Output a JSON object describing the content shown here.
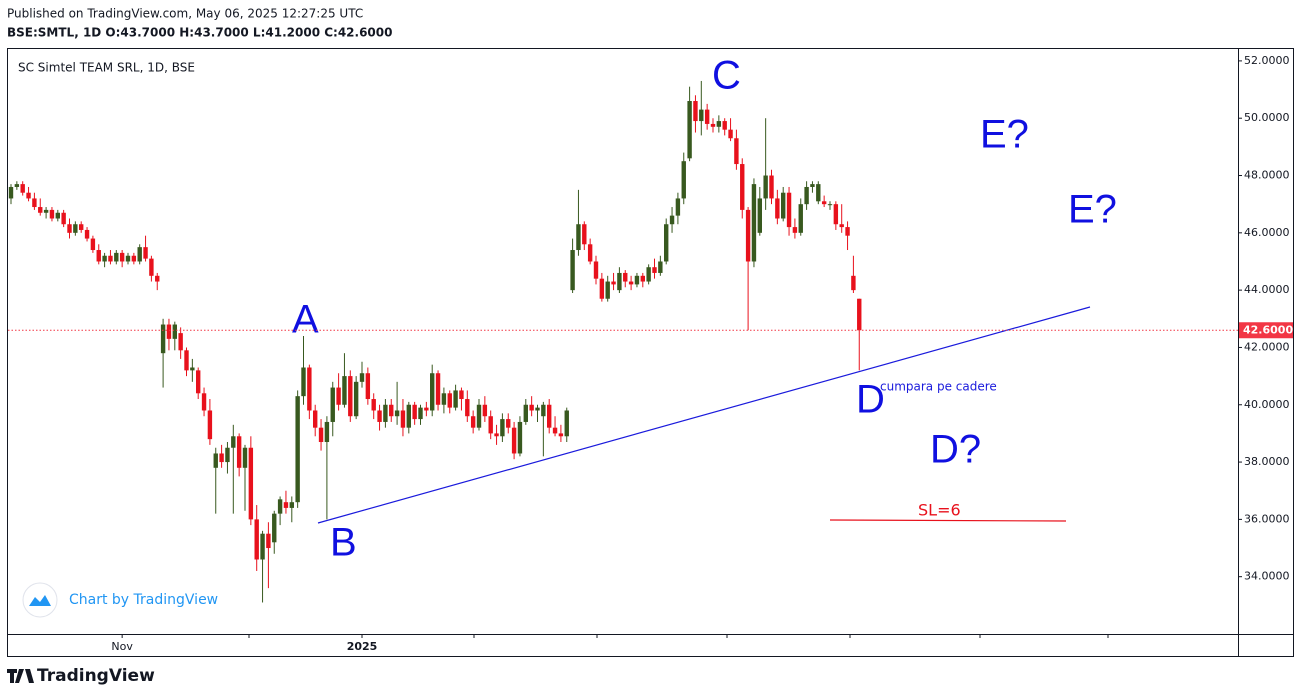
{
  "header": {
    "published": "Published on TradingView.com, May 06, 2025 12:27:25 UTC",
    "legend": "BSE:SMTL, 1D  O:43.7000 H:43.7000 L:41.2000 C:42.6000"
  },
  "footer": {
    "watermark": "Chart by TradingView",
    "logo": "TradingView"
  },
  "chart_data": {
    "type": "candlestick",
    "title": "SC Simtel TEAM SRL, 1D, BSE",
    "up_color": "#38591f",
    "down_color": "#e8111c",
    "categories": [
      null,
      null,
      null,
      null,
      null,
      null,
      null,
      null,
      null,
      null,
      null,
      null,
      null,
      null,
      null,
      null,
      null,
      null,
      null,
      "Nov",
      null,
      null,
      null,
      null,
      null,
      null,
      null,
      null,
      null,
      null,
      null,
      null,
      null,
      null,
      null,
      null,
      null,
      null,
      null,
      null,
      null,
      null,
      null,
      null,
      null,
      null,
      null,
      null,
      null,
      null,
      null,
      null,
      null,
      null,
      null,
      null,
      null,
      null,
      null,
      null,
      "2025",
      null,
      null,
      null,
      null,
      null,
      null,
      null,
      null,
      null,
      null,
      null,
      null,
      null,
      null,
      null,
      null,
      null,
      null,
      null,
      null,
      null,
      null,
      null,
      null,
      null,
      null,
      null,
      null,
      null,
      null,
      null,
      null,
      null,
      null,
      null,
      null,
      null,
      null,
      null,
      null,
      null,
      null,
      null,
      null,
      null,
      null,
      null,
      null,
      null,
      null,
      null,
      null,
      null,
      null,
      null,
      null,
      null,
      null,
      null,
      null,
      null,
      null,
      null,
      null,
      null,
      null,
      null,
      null,
      null,
      null,
      null,
      null,
      null,
      null,
      null,
      null,
      null,
      null,
      null,
      null,
      null,
      null,
      null,
      null,
      null
    ],
    "candles": [
      [
        47.2,
        47.7,
        47.0,
        47.6
      ],
      [
        47.6,
        47.8,
        47.5,
        47.7
      ],
      [
        47.7,
        47.8,
        47.3,
        47.4
      ],
      [
        47.4,
        47.6,
        47.1,
        47.2
      ],
      [
        47.2,
        47.4,
        46.8,
        46.9
      ],
      [
        46.9,
        47.2,
        46.6,
        46.7
      ],
      [
        46.7,
        46.9,
        46.5,
        46.8
      ],
      [
        46.8,
        46.9,
        46.4,
        46.5
      ],
      [
        46.5,
        46.8,
        46.4,
        46.7
      ],
      [
        46.7,
        46.8,
        46.2,
        46.3
      ],
      [
        46.3,
        46.5,
        45.8,
        46.0
      ],
      [
        46.0,
        46.4,
        45.9,
        46.3
      ],
      [
        46.3,
        46.4,
        46.0,
        46.1
      ],
      [
        46.1,
        46.2,
        45.7,
        45.8
      ],
      [
        45.8,
        45.9,
        45.3,
        45.4
      ],
      [
        45.4,
        45.6,
        44.9,
        45.0
      ],
      [
        45.0,
        45.3,
        44.8,
        45.2
      ],
      [
        45.2,
        45.4,
        44.9,
        45.0
      ],
      [
        45.0,
        45.4,
        44.9,
        45.3
      ],
      [
        45.3,
        45.4,
        44.8,
        45.0
      ],
      [
        45.0,
        45.3,
        44.9,
        45.2
      ],
      [
        45.2,
        45.3,
        44.9,
        45.0
      ],
      [
        45.0,
        45.6,
        44.9,
        45.5
      ],
      [
        45.5,
        45.9,
        45.0,
        45.1
      ],
      [
        45.1,
        45.2,
        44.3,
        44.5
      ],
      [
        44.5,
        44.6,
        44.0,
        44.3
      ],
      [
        41.8,
        43.0,
        40.6,
        42.8
      ],
      [
        42.8,
        43.0,
        41.9,
        42.3
      ],
      [
        42.3,
        42.9,
        41.9,
        42.8
      ],
      [
        42.5,
        42.7,
        41.6,
        41.9
      ],
      [
        41.9,
        42.0,
        41.0,
        41.2
      ],
      [
        41.2,
        41.6,
        40.8,
        41.3
      ],
      [
        41.2,
        41.3,
        40.2,
        40.4
      ],
      [
        40.4,
        40.6,
        39.6,
        39.8
      ],
      [
        39.8,
        40.2,
        38.6,
        38.8
      ],
      [
        37.8,
        38.5,
        36.2,
        38.3
      ],
      [
        38.3,
        38.6,
        37.8,
        38.0
      ],
      [
        38.0,
        38.7,
        37.6,
        38.5
      ],
      [
        38.5,
        39.3,
        36.2,
        38.9
      ],
      [
        38.9,
        39.0,
        37.5,
        37.8
      ],
      [
        37.8,
        38.6,
        36.3,
        38.5
      ],
      [
        38.5,
        38.9,
        35.8,
        36.0
      ],
      [
        36.0,
        36.5,
        34.2,
        34.6
      ],
      [
        34.6,
        35.6,
        33.1,
        35.5
      ],
      [
        35.5,
        35.9,
        33.6,
        35.0
      ],
      [
        35.2,
        36.3,
        34.8,
        36.2
      ],
      [
        36.2,
        36.8,
        35.8,
        36.7
      ],
      [
        36.6,
        37.0,
        36.2,
        36.4
      ],
      [
        36.4,
        36.8,
        35.9,
        36.6
      ],
      [
        36.6,
        40.5,
        36.4,
        40.3
      ],
      [
        40.3,
        42.4,
        40.0,
        41.3
      ],
      [
        41.3,
        41.4,
        39.5,
        39.8
      ],
      [
        39.8,
        40.0,
        38.9,
        39.2
      ],
      [
        39.2,
        39.5,
        38.4,
        38.7
      ],
      [
        38.7,
        39.6,
        36.0,
        39.4
      ],
      [
        39.4,
        40.8,
        38.9,
        40.6
      ],
      [
        40.6,
        41.1,
        39.8,
        40.0
      ],
      [
        40.0,
        41.8,
        39.9,
        41.0
      ],
      [
        41.0,
        41.2,
        39.4,
        39.6
      ],
      [
        39.6,
        41.0,
        39.5,
        40.8
      ],
      [
        40.8,
        41.5,
        40.6,
        41.1
      ],
      [
        41.1,
        41.3,
        40.0,
        40.2
      ],
      [
        40.2,
        40.4,
        39.5,
        39.8
      ],
      [
        39.8,
        40.0,
        39.1,
        39.4
      ],
      [
        39.4,
        40.2,
        39.2,
        40.0
      ],
      [
        40.0,
        40.2,
        39.4,
        39.6
      ],
      [
        39.6,
        40.8,
        39.3,
        39.8
      ],
      [
        39.8,
        40.2,
        38.9,
        39.2
      ],
      [
        39.2,
        40.1,
        39.0,
        40.0
      ],
      [
        40.0,
        40.1,
        39.3,
        39.5
      ],
      [
        39.5,
        40.0,
        39.3,
        39.9
      ],
      [
        39.9,
        40.1,
        39.6,
        39.8
      ],
      [
        39.8,
        41.4,
        39.6,
        41.1
      ],
      [
        41.1,
        41.2,
        39.8,
        40.0
      ],
      [
        40.0,
        40.6,
        39.7,
        40.4
      ],
      [
        40.4,
        40.5,
        39.7,
        39.9
      ],
      [
        39.9,
        40.7,
        39.8,
        40.5
      ],
      [
        40.5,
        40.6,
        39.8,
        40.2
      ],
      [
        40.2,
        40.5,
        39.4,
        39.6
      ],
      [
        39.6,
        39.8,
        39.0,
        39.2
      ],
      [
        39.2,
        40.2,
        39.1,
        40.0
      ],
      [
        40.0,
        40.3,
        39.4,
        39.6
      ],
      [
        39.6,
        39.8,
        38.8,
        39.0
      ],
      [
        39.0,
        39.3,
        38.6,
        38.9
      ],
      [
        38.9,
        39.7,
        38.7,
        39.5
      ],
      [
        39.5,
        39.7,
        39.0,
        39.2
      ],
      [
        39.2,
        39.4,
        38.1,
        38.3
      ],
      [
        38.3,
        39.6,
        38.2,
        39.4
      ],
      [
        39.4,
        40.2,
        39.3,
        40.0
      ],
      [
        40.0,
        40.3,
        39.6,
        39.8
      ],
      [
        39.8,
        40.0,
        39.4,
        39.9
      ],
      [
        39.6,
        40.1,
        38.2,
        40.0
      ],
      [
        40.0,
        40.2,
        39.0,
        39.2
      ],
      [
        39.2,
        39.6,
        38.9,
        39.0
      ],
      [
        39.0,
        39.3,
        38.7,
        38.9
      ],
      [
        38.9,
        39.9,
        38.7,
        39.8
      ],
      [
        44.0,
        45.8,
        43.9,
        45.4
      ],
      [
        45.4,
        47.5,
        45.2,
        46.3
      ],
      [
        46.3,
        46.4,
        45.4,
        45.6
      ],
      [
        45.6,
        45.8,
        44.9,
        45.0
      ],
      [
        45.0,
        45.2,
        44.2,
        44.4
      ],
      [
        44.4,
        44.6,
        43.6,
        43.7
      ],
      [
        43.7,
        44.5,
        43.6,
        44.3
      ],
      [
        44.3,
        44.6,
        44.0,
        44.2
      ],
      [
        44.0,
        44.8,
        43.9,
        44.6
      ],
      [
        44.6,
        44.7,
        44.1,
        44.3
      ],
      [
        44.3,
        44.5,
        44.0,
        44.2
      ],
      [
        44.2,
        44.6,
        44.1,
        44.5
      ],
      [
        44.5,
        44.6,
        44.1,
        44.3
      ],
      [
        44.3,
        44.9,
        44.2,
        44.8
      ],
      [
        44.8,
        45.1,
        44.4,
        44.6
      ],
      [
        44.6,
        45.2,
        44.5,
        45.0
      ],
      [
        45.0,
        46.5,
        44.9,
        46.3
      ],
      [
        46.3,
        46.9,
        46.0,
        46.6
      ],
      [
        46.6,
        47.4,
        46.3,
        47.2
      ],
      [
        47.2,
        48.8,
        47.0,
        48.5
      ],
      [
        48.6,
        51.1,
        48.5,
        50.6
      ],
      [
        50.6,
        50.8,
        49.5,
        49.9
      ],
      [
        49.9,
        51.3,
        49.4,
        50.3
      ],
      [
        50.3,
        50.5,
        49.6,
        49.8
      ],
      [
        49.8,
        50.0,
        49.5,
        49.7
      ],
      [
        49.7,
        50.1,
        49.5,
        49.9
      ],
      [
        49.9,
        50.0,
        49.4,
        49.6
      ],
      [
        49.6,
        50.0,
        49.2,
        49.3
      ],
      [
        49.3,
        49.6,
        48.2,
        48.4
      ],
      [
        48.4,
        48.6,
        46.5,
        46.8
      ],
      [
        46.8,
        46.9,
        42.6,
        45.0
      ],
      [
        45.0,
        47.9,
        44.8,
        47.7
      ],
      [
        46.0,
        47.6,
        45.9,
        47.2
      ],
      [
        47.2,
        50.0,
        46.8,
        48.0
      ],
      [
        48.0,
        48.2,
        47.0,
        47.2
      ],
      [
        47.2,
        47.5,
        46.3,
        46.5
      ],
      [
        46.5,
        47.6,
        46.4,
        47.4
      ],
      [
        47.4,
        47.6,
        45.9,
        46.2
      ],
      [
        46.2,
        46.5,
        45.8,
        46.0
      ],
      [
        46.0,
        47.2,
        45.9,
        47.0
      ],
      [
        47.0,
        47.8,
        46.8,
        47.6
      ],
      [
        47.6,
        47.8,
        47.4,
        47.7
      ],
      [
        47.1,
        47.8,
        47.0,
        47.7
      ],
      [
        47.1,
        47.3,
        46.9,
        47.0
      ],
      [
        47.0,
        47.1,
        46.8,
        47.0
      ],
      [
        47.0,
        47.1,
        46.1,
        46.3
      ],
      [
        46.3,
        47.0,
        46.0,
        46.2
      ],
      [
        46.2,
        46.4,
        45.4,
        45.9
      ],
      [
        44.5,
        45.2,
        43.9,
        44.0
      ],
      [
        43.7,
        43.7,
        41.2,
        42.6
      ]
    ],
    "ylim": [
      32,
      52.45
    ],
    "yticks": [
      {
        "value": 34,
        "label": "34.0000"
      },
      {
        "value": 36,
        "label": "36.0000"
      },
      {
        "value": 38,
        "label": "38.0000"
      },
      {
        "value": 40,
        "label": "40.0000"
      },
      {
        "value": 42,
        "label": "42.0000"
      },
      {
        "value": 44,
        "label": "44.0000"
      },
      {
        "value": 46,
        "label": "46.0000"
      },
      {
        "value": 48,
        "label": "48.0000"
      },
      {
        "value": 50,
        "label": "50.0000"
      },
      {
        "value": 52,
        "label": "52.0000"
      }
    ],
    "last_price": {
      "value": 42.6,
      "label": "42.6000",
      "color": "#f23645"
    },
    "annotations": [
      "A",
      "B",
      "C",
      "D",
      "D?",
      "E?",
      "E?",
      "cumpara pe cadere",
      "SL=6"
    ]
  }
}
